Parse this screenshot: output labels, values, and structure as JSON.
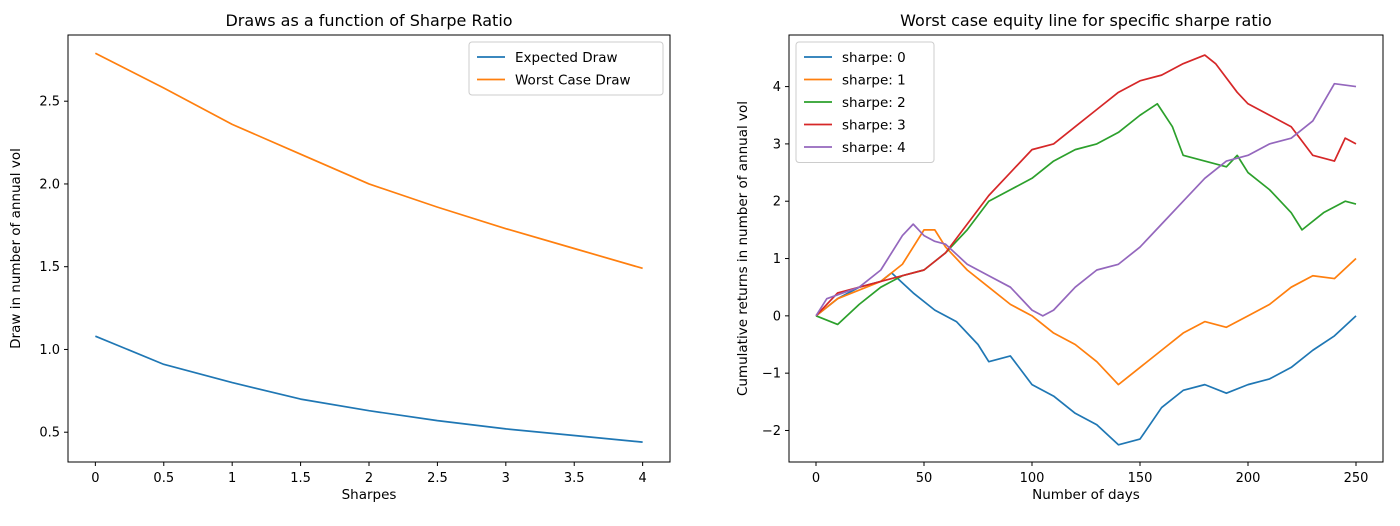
{
  "chart_data": [
    {
      "type": "line",
      "title": "Draws as a function of Sharpe Ratio",
      "xlabel": "Sharpes",
      "ylabel": "Draw in number of annual vol",
      "xlim": [
        -0.2,
        4.2
      ],
      "ylim": [
        0.32,
        2.9
      ],
      "xticks": [
        0,
        0.5,
        1,
        1.5,
        2,
        2.5,
        3,
        3.5,
        4
      ],
      "xtick_labels": [
        "0",
        "0.5",
        "1",
        "1.5",
        "2",
        "2.5",
        "3",
        "3.5",
        "4"
      ],
      "yticks": [
        0.5,
        1.0,
        1.5,
        2.0,
        2.5
      ],
      "ytick_labels": [
        "0.5",
        "1.0",
        "1.5",
        "2.0",
        "2.5"
      ],
      "legend_position": "top-right",
      "x": [
        0,
        0.5,
        1,
        1.5,
        2,
        2.5,
        3,
        3.5,
        4
      ],
      "series": [
        {
          "name": "Expected Draw",
          "color": "#1f77b4",
          "values": [
            1.08,
            0.91,
            0.8,
            0.7,
            0.63,
            0.57,
            0.52,
            0.48,
            0.44
          ]
        },
        {
          "name": "Worst Case Draw",
          "color": "#ff7f0e",
          "values": [
            2.79,
            2.58,
            2.36,
            2.18,
            2.0,
            1.86,
            1.73,
            1.61,
            1.49
          ]
        }
      ]
    },
    {
      "type": "line",
      "title": "Worst case equity line for specific sharpe ratio",
      "xlabel": "Number of days",
      "ylabel": "Cumulative returns in number of annual vol",
      "xlim": [
        -12.5,
        262.5
      ],
      "ylim": [
        -2.55,
        4.9
      ],
      "xticks": [
        0,
        50,
        100,
        150,
        200,
        250
      ],
      "xtick_labels": [
        "0",
        "50",
        "100",
        "150",
        "200",
        "250"
      ],
      "yticks": [
        -2,
        -1,
        0,
        1,
        2,
        3,
        4
      ],
      "ytick_labels": [
        "−2",
        "−1",
        "0",
        "1",
        "2",
        "3",
        "4"
      ],
      "legend_position": "top-left",
      "series": [
        {
          "name": "sharpe: 0",
          "color": "#1f77b4",
          "points": [
            [
              0,
              0
            ],
            [
              10,
              0.3
            ],
            [
              20,
              0.5
            ],
            [
              30,
              0.6
            ],
            [
              35,
              0.75
            ],
            [
              45,
              0.4
            ],
            [
              55,
              0.1
            ],
            [
              65,
              -0.1
            ],
            [
              75,
              -0.5
            ],
            [
              80,
              -0.8
            ],
            [
              90,
              -0.7
            ],
            [
              100,
              -1.2
            ],
            [
              110,
              -1.4
            ],
            [
              120,
              -1.7
            ],
            [
              130,
              -1.9
            ],
            [
              140,
              -2.25
            ],
            [
              150,
              -2.15
            ],
            [
              160,
              -1.6
            ],
            [
              170,
              -1.3
            ],
            [
              180,
              -1.2
            ],
            [
              190,
              -1.35
            ],
            [
              200,
              -1.2
            ],
            [
              210,
              -1.1
            ],
            [
              220,
              -0.9
            ],
            [
              230,
              -0.6
            ],
            [
              240,
              -0.35
            ],
            [
              250,
              0
            ]
          ]
        },
        {
          "name": "sharpe: 1",
          "color": "#ff7f0e",
          "points": [
            [
              0,
              0
            ],
            [
              10,
              0.3
            ],
            [
              20,
              0.45
            ],
            [
              30,
              0.6
            ],
            [
              40,
              0.9
            ],
            [
              50,
              1.5
            ],
            [
              55,
              1.5
            ],
            [
              60,
              1.2
            ],
            [
              70,
              0.8
            ],
            [
              80,
              0.5
            ],
            [
              90,
              0.2
            ],
            [
              100,
              0.0
            ],
            [
              110,
              -0.3
            ],
            [
              120,
              -0.5
            ],
            [
              130,
              -0.8
            ],
            [
              140,
              -1.2
            ],
            [
              150,
              -0.9
            ],
            [
              160,
              -0.6
            ],
            [
              170,
              -0.3
            ],
            [
              180,
              -0.1
            ],
            [
              190,
              -0.2
            ],
            [
              200,
              0.0
            ],
            [
              210,
              0.2
            ],
            [
              220,
              0.5
            ],
            [
              230,
              0.7
            ],
            [
              240,
              0.65
            ],
            [
              250,
              1.0
            ]
          ]
        },
        {
          "name": "sharpe: 2",
          "color": "#2ca02c",
          "points": [
            [
              0,
              0
            ],
            [
              10,
              -0.15
            ],
            [
              20,
              0.2
            ],
            [
              30,
              0.5
            ],
            [
              40,
              0.7
            ],
            [
              50,
              0.8
            ],
            [
              60,
              1.1
            ],
            [
              70,
              1.5
            ],
            [
              80,
              2.0
            ],
            [
              90,
              2.2
            ],
            [
              100,
              2.4
            ],
            [
              110,
              2.7
            ],
            [
              120,
              2.9
            ],
            [
              130,
              3.0
            ],
            [
              140,
              3.2
            ],
            [
              150,
              3.5
            ],
            [
              158,
              3.7
            ],
            [
              165,
              3.3
            ],
            [
              170,
              2.8
            ],
            [
              180,
              2.7
            ],
            [
              190,
              2.6
            ],
            [
              195,
              2.8
            ],
            [
              200,
              2.5
            ],
            [
              210,
              2.2
            ],
            [
              220,
              1.8
            ],
            [
              225,
              1.5
            ],
            [
              235,
              1.8
            ],
            [
              245,
              2.0
            ],
            [
              250,
              1.95
            ]
          ]
        },
        {
          "name": "sharpe: 3",
          "color": "#d62728",
          "points": [
            [
              0,
              0
            ],
            [
              10,
              0.4
            ],
            [
              20,
              0.5
            ],
            [
              30,
              0.6
            ],
            [
              40,
              0.7
            ],
            [
              50,
              0.8
            ],
            [
              60,
              1.1
            ],
            [
              70,
              1.6
            ],
            [
              80,
              2.1
            ],
            [
              90,
              2.5
            ],
            [
              100,
              2.9
            ],
            [
              110,
              3.0
            ],
            [
              120,
              3.3
            ],
            [
              130,
              3.6
            ],
            [
              140,
              3.9
            ],
            [
              150,
              4.1
            ],
            [
              160,
              4.2
            ],
            [
              170,
              4.4
            ],
            [
              180,
              4.55
            ],
            [
              185,
              4.4
            ],
            [
              195,
              3.9
            ],
            [
              200,
              3.7
            ],
            [
              210,
              3.5
            ],
            [
              220,
              3.3
            ],
            [
              230,
              2.8
            ],
            [
              240,
              2.7
            ],
            [
              245,
              3.1
            ],
            [
              250,
              3.0
            ]
          ]
        },
        {
          "name": "sharpe: 4",
          "color": "#9467bd",
          "points": [
            [
              0,
              0
            ],
            [
              5,
              0.3
            ],
            [
              20,
              0.5
            ],
            [
              30,
              0.8
            ],
            [
              40,
              1.4
            ],
            [
              45,
              1.6
            ],
            [
              50,
              1.4
            ],
            [
              55,
              1.3
            ],
            [
              60,
              1.25
            ],
            [
              70,
              0.9
            ],
            [
              80,
              0.7
            ],
            [
              90,
              0.5
            ],
            [
              100,
              0.1
            ],
            [
              105,
              0.0
            ],
            [
              110,
              0.1
            ],
            [
              120,
              0.5
            ],
            [
              130,
              0.8
            ],
            [
              140,
              0.9
            ],
            [
              150,
              1.2
            ],
            [
              160,
              1.6
            ],
            [
              170,
              2.0
            ],
            [
              180,
              2.4
            ],
            [
              190,
              2.7
            ],
            [
              200,
              2.8
            ],
            [
              210,
              3.0
            ],
            [
              220,
              3.1
            ],
            [
              230,
              3.4
            ],
            [
              240,
              4.05
            ],
            [
              250,
              4.0
            ]
          ]
        }
      ]
    }
  ]
}
